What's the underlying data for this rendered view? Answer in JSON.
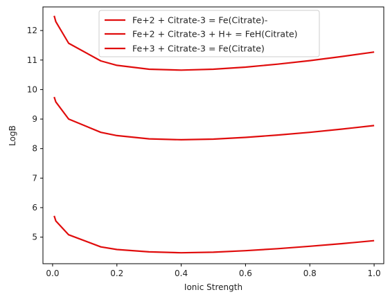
{
  "chart_data": {
    "type": "line",
    "xlabel": "Ionic Strength",
    "ylabel": "LogB",
    "xlim": [
      -0.03,
      1.03
    ],
    "ylim": [
      4.1,
      12.8
    ],
    "x_ticks": [
      "0.0",
      "0.2",
      "0.4",
      "0.6",
      "0.8",
      "1.0"
    ],
    "y_ticks": [
      "5",
      "6",
      "7",
      "8",
      "9",
      "10",
      "11",
      "12"
    ],
    "legend_position": "top-center",
    "grid": false,
    "line_color": "#e00c0c",
    "series": [
      {
        "name": "Fe+2 + Citrate-3 = Fe(Citrate)-",
        "x": [
          0.005,
          0.01,
          0.05,
          0.15,
          0.2,
          0.3,
          0.4,
          0.5,
          0.6,
          0.7,
          0.8,
          0.9,
          1.0
        ],
        "values": [
          12.5,
          12.3,
          11.57,
          10.97,
          10.82,
          10.69,
          10.66,
          10.69,
          10.76,
          10.86,
          10.98,
          11.12,
          11.27
        ]
      },
      {
        "name": "Fe+2 + Citrate-3 + H+ = FeH(Citrate)",
        "x": [
          0.005,
          0.01,
          0.05,
          0.15,
          0.2,
          0.3,
          0.4,
          0.5,
          0.6,
          0.7,
          0.8,
          0.9,
          1.0
        ],
        "values": [
          9.75,
          9.58,
          9.0,
          8.55,
          8.44,
          8.33,
          8.3,
          8.32,
          8.38,
          8.46,
          8.55,
          8.66,
          8.78
        ]
      },
      {
        "name": "Fe+3 + Citrate-3 = Fe(Citrate)",
        "x": [
          0.005,
          0.01,
          0.05,
          0.15,
          0.2,
          0.3,
          0.4,
          0.5,
          0.6,
          0.7,
          0.8,
          0.9,
          1.0
        ],
        "values": [
          5.72,
          5.55,
          5.08,
          4.67,
          4.58,
          4.5,
          4.47,
          4.49,
          4.54,
          4.61,
          4.69,
          4.78,
          4.88
        ]
      }
    ]
  }
}
